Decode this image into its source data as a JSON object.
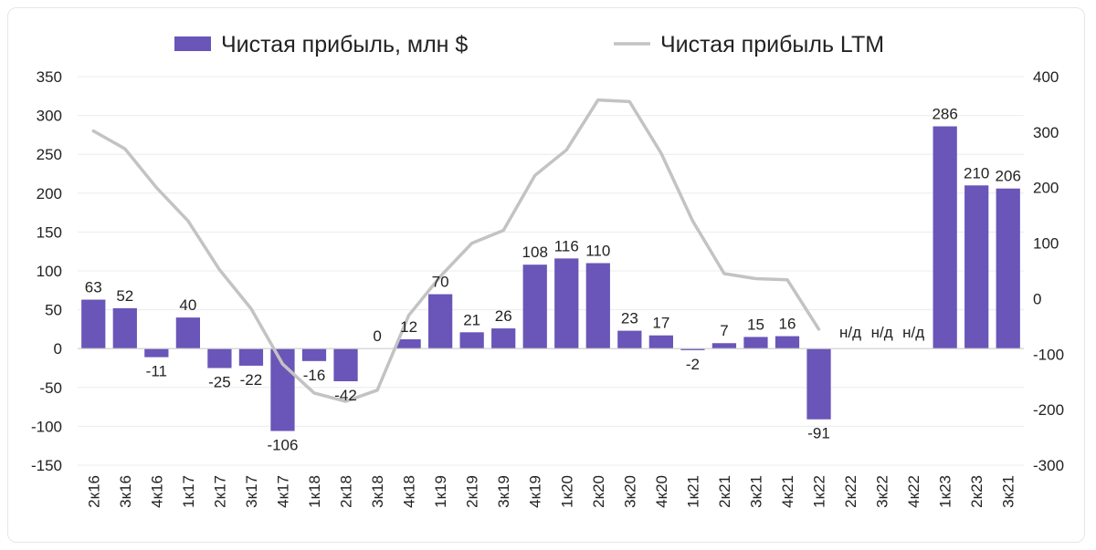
{
  "chart_data": {
    "type": "bar",
    "categories": [
      "2к16",
      "3к16",
      "4к16",
      "1к17",
      "2к17",
      "3к17",
      "4к17",
      "1к18",
      "2к18",
      "3к18",
      "4к18",
      "1к19",
      "2к19",
      "3к19",
      "4к19",
      "1к20",
      "2к20",
      "3к20",
      "4к20",
      "1к21",
      "2к21",
      "3к21",
      "4к21",
      "1к22",
      "2к22",
      "3к22",
      "4к22",
      "1к23",
      "2к23",
      "3к21"
    ],
    "series": [
      {
        "name": "Чистая прибыль, млн $",
        "type": "bar",
        "axis": "left",
        "color": "#6a55b8",
        "values": [
          63,
          52,
          -11,
          40,
          -25,
          -22,
          -106,
          -16,
          -42,
          0,
          12,
          70,
          21,
          26,
          108,
          116,
          110,
          23,
          17,
          -2,
          7,
          15,
          16,
          -91,
          null,
          null,
          null,
          286,
          210,
          206
        ],
        "labels": [
          "63",
          "52",
          "-11",
          "40",
          "-25",
          "-22",
          "-106",
          "-16",
          "-42",
          "0",
          "12",
          "70",
          "21",
          "26",
          "108",
          "116",
          "110",
          "23",
          "17",
          "-2",
          "7",
          "15",
          "16",
          "-91",
          "н/д",
          "н/д",
          "н/д",
          "286",
          "210",
          "206"
        ]
      },
      {
        "name": "Чистая прибыль LTM",
        "type": "line",
        "axis": "right",
        "color": "#c3c3c3",
        "values": [
          302,
          270,
          200,
          140,
          52,
          -18,
          -118,
          -170,
          -185,
          -165,
          -30,
          40,
          100,
          123,
          222,
          268,
          358,
          355,
          262,
          140,
          45,
          36,
          34,
          -55,
          null,
          null,
          null,
          null,
          null,
          null
        ]
      }
    ],
    "y_left": {
      "min": -150,
      "max": 350,
      "ticks": [
        350,
        300,
        250,
        200,
        150,
        100,
        50,
        0,
        -50,
        -100,
        -150
      ]
    },
    "y_right": {
      "min": -300,
      "max": 400,
      "ticks": [
        400,
        300,
        200,
        100,
        0,
        -100,
        -200,
        -300
      ]
    },
    "legend_position": "top",
    "grid": true
  }
}
